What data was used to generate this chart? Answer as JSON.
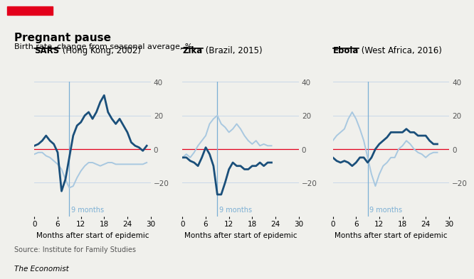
{
  "title": "Pregnant pause",
  "subtitle": "Birth rate, change from seasonal average, %",
  "source": "Source: Institute for Family Studies",
  "branding": "The Economist",
  "red_bar_color": "#E3001B",
  "panels": [
    {
      "label_bold": "SARS",
      "label_normal": " (Hong Kong, 2002)",
      "xlabel": "Months after start of epidemic",
      "xlim": [
        0,
        30
      ],
      "ylim": [
        -40,
        40
      ],
      "yticks": [
        -20,
        0,
        20,
        40
      ],
      "xticks": [
        0,
        6,
        12,
        18,
        24,
        30
      ],
      "vline_x": 9,
      "vline_label": "9 months",
      "dark_line": [
        [
          0,
          2
        ],
        [
          1,
          3
        ],
        [
          2,
          5
        ],
        [
          3,
          8
        ],
        [
          4,
          5
        ],
        [
          5,
          3
        ],
        [
          6,
          -2
        ],
        [
          7,
          -25
        ],
        [
          8,
          -18
        ],
        [
          9,
          -5
        ],
        [
          10,
          8
        ],
        [
          11,
          14
        ],
        [
          12,
          16
        ],
        [
          13,
          20
        ],
        [
          14,
          22
        ],
        [
          15,
          18
        ],
        [
          16,
          22
        ],
        [
          17,
          28
        ],
        [
          18,
          32
        ],
        [
          19,
          22
        ],
        [
          20,
          18
        ],
        [
          21,
          15
        ],
        [
          22,
          18
        ],
        [
          23,
          14
        ],
        [
          24,
          10
        ],
        [
          25,
          4
        ],
        [
          26,
          2
        ],
        [
          27,
          1
        ],
        [
          28,
          -1
        ],
        [
          29,
          2
        ]
      ],
      "light_line": [
        [
          0,
          -3
        ],
        [
          1,
          -2
        ],
        [
          2,
          -2
        ],
        [
          3,
          -4
        ],
        [
          4,
          -5
        ],
        [
          5,
          -7
        ],
        [
          6,
          -9
        ],
        [
          7,
          -12
        ],
        [
          8,
          -18
        ],
        [
          9,
          -23
        ],
        [
          10,
          -22
        ],
        [
          11,
          -17
        ],
        [
          12,
          -13
        ],
        [
          13,
          -10
        ],
        [
          14,
          -8
        ],
        [
          15,
          -8
        ],
        [
          16,
          -9
        ],
        [
          17,
          -10
        ],
        [
          18,
          -9
        ],
        [
          19,
          -8
        ],
        [
          20,
          -8
        ],
        [
          21,
          -9
        ],
        [
          22,
          -9
        ],
        [
          23,
          -9
        ],
        [
          24,
          -9
        ],
        [
          25,
          -9
        ],
        [
          26,
          -9
        ],
        [
          27,
          -9
        ],
        [
          28,
          -9
        ],
        [
          29,
          -8
        ]
      ]
    },
    {
      "label_bold": "Zika",
      "label_normal": " (Brazil, 2015)",
      "xlabel": "Months after start of epidemic",
      "xlim": [
        0,
        30
      ],
      "ylim": [
        -40,
        40
      ],
      "yticks": [
        -20,
        0,
        20,
        40
      ],
      "xticks": [
        0,
        6,
        12,
        18,
        24,
        30
      ],
      "vline_x": 9,
      "vline_label": "9 months",
      "dark_line": [
        [
          0,
          -5
        ],
        [
          1,
          -5
        ],
        [
          2,
          -7
        ],
        [
          3,
          -8
        ],
        [
          4,
          -10
        ],
        [
          5,
          -5
        ],
        [
          6,
          1
        ],
        [
          7,
          -3
        ],
        [
          8,
          -10
        ],
        [
          9,
          -27
        ],
        [
          10,
          -27
        ],
        [
          11,
          -20
        ],
        [
          12,
          -12
        ],
        [
          13,
          -8
        ],
        [
          14,
          -10
        ],
        [
          15,
          -10
        ],
        [
          16,
          -12
        ],
        [
          17,
          -12
        ],
        [
          18,
          -10
        ],
        [
          19,
          -10
        ],
        [
          20,
          -8
        ],
        [
          21,
          -10
        ],
        [
          22,
          -8
        ],
        [
          23,
          -8
        ]
      ],
      "light_line": [
        [
          0,
          -5
        ],
        [
          1,
          -3
        ],
        [
          2,
          -5
        ],
        [
          3,
          -2
        ],
        [
          4,
          2
        ],
        [
          5,
          5
        ],
        [
          6,
          8
        ],
        [
          7,
          15
        ],
        [
          8,
          18
        ],
        [
          9,
          20
        ],
        [
          10,
          15
        ],
        [
          11,
          13
        ],
        [
          12,
          10
        ],
        [
          13,
          12
        ],
        [
          14,
          15
        ],
        [
          15,
          12
        ],
        [
          16,
          8
        ],
        [
          17,
          5
        ],
        [
          18,
          3
        ],
        [
          19,
          5
        ],
        [
          20,
          2
        ],
        [
          21,
          3
        ],
        [
          22,
          2
        ],
        [
          23,
          2
        ]
      ]
    },
    {
      "label_bold": "Ebola",
      "label_normal": " (West Africa, 2016)",
      "xlabel": "Months after start of epidemic",
      "xlim": [
        0,
        30
      ],
      "ylim": [
        -40,
        40
      ],
      "yticks": [
        -20,
        0,
        20,
        40
      ],
      "xticks": [
        0,
        6,
        12,
        18,
        24,
        30
      ],
      "vline_x": 9,
      "vline_label": "9 months",
      "dark_line": [
        [
          0,
          -5
        ],
        [
          1,
          -7
        ],
        [
          2,
          -8
        ],
        [
          3,
          -7
        ],
        [
          4,
          -8
        ],
        [
          5,
          -10
        ],
        [
          6,
          -8
        ],
        [
          7,
          -5
        ],
        [
          8,
          -5
        ],
        [
          9,
          -8
        ],
        [
          10,
          -5
        ],
        [
          11,
          0
        ],
        [
          12,
          3
        ],
        [
          13,
          5
        ],
        [
          14,
          7
        ],
        [
          15,
          10
        ],
        [
          16,
          10
        ],
        [
          17,
          10
        ],
        [
          18,
          10
        ],
        [
          19,
          12
        ],
        [
          20,
          10
        ],
        [
          21,
          10
        ],
        [
          22,
          8
        ],
        [
          23,
          8
        ],
        [
          24,
          8
        ],
        [
          25,
          5
        ],
        [
          26,
          3
        ],
        [
          27,
          3
        ]
      ],
      "light_line": [
        [
          0,
          5
        ],
        [
          1,
          8
        ],
        [
          2,
          10
        ],
        [
          3,
          12
        ],
        [
          4,
          18
        ],
        [
          5,
          22
        ],
        [
          6,
          18
        ],
        [
          7,
          12
        ],
        [
          8,
          5
        ],
        [
          9,
          -5
        ],
        [
          10,
          -15
        ],
        [
          11,
          -22
        ],
        [
          12,
          -15
        ],
        [
          13,
          -10
        ],
        [
          14,
          -8
        ],
        [
          15,
          -5
        ],
        [
          16,
          -5
        ],
        [
          17,
          0
        ],
        [
          18,
          2
        ],
        [
          19,
          5
        ],
        [
          20,
          3
        ],
        [
          21,
          0
        ],
        [
          22,
          -2
        ],
        [
          23,
          -3
        ],
        [
          24,
          -5
        ],
        [
          25,
          -3
        ],
        [
          26,
          -2
        ],
        [
          27,
          -2
        ]
      ]
    }
  ],
  "dark_color": "#1A4F7A",
  "light_color": "#A8C8E0",
  "zero_line_color": "#E3001B",
  "vline_color": "#7BAFD4",
  "grid_color": "#C8D8E8",
  "bg_color": "#FFFFFF",
  "fig_bg_color": "#F0F0EC"
}
